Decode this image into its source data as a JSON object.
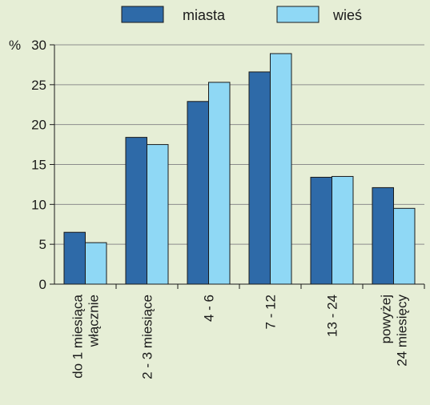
{
  "chart_data": {
    "type": "bar",
    "title": "",
    "xlabel": "",
    "ylabel": "%",
    "ylim": [
      0,
      30
    ],
    "yticks": [
      0,
      5,
      10,
      15,
      20,
      25,
      30
    ],
    "grid": true,
    "legend_position": "top",
    "categories": [
      [
        "do 1 miesiąca",
        "włącznie"
      ],
      [
        "2 - 3 miesiące"
      ],
      [
        "4 - 6"
      ],
      [
        "7 - 12"
      ],
      [
        "13 - 24"
      ],
      [
        "powyżej",
        "24 miesięcy"
      ]
    ],
    "series": [
      {
        "name": "miasta",
        "color": "#2e6aa8",
        "values": [
          6.5,
          18.4,
          22.9,
          26.6,
          13.4,
          12.1
        ]
      },
      {
        "name": "wieś",
        "color": "#8fd8f5",
        "values": [
          5.2,
          17.5,
          25.3,
          28.9,
          13.5,
          9.5
        ]
      }
    ]
  }
}
